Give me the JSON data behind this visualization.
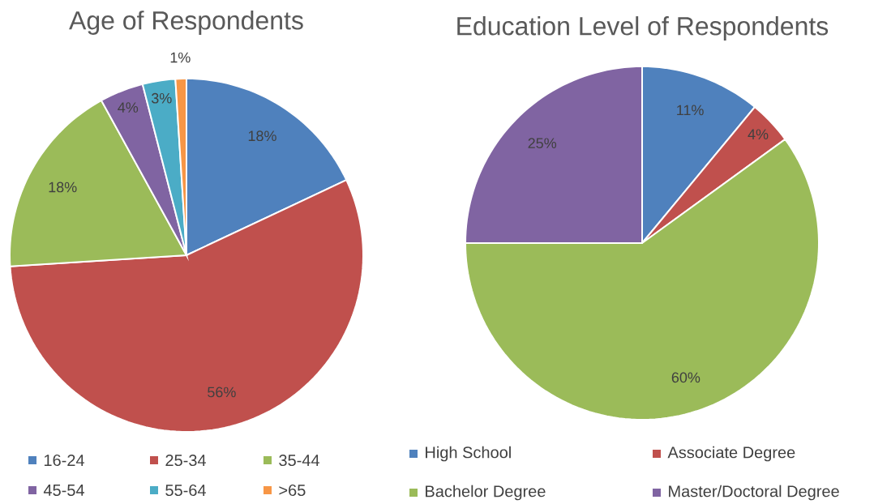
{
  "chart_data": [
    {
      "type": "pie",
      "title": "Age of Respondents",
      "categories": [
        "16-24",
        "25-34",
        "35-44",
        "45-54",
        "55-64",
        ">65"
      ],
      "values": [
        18,
        56,
        18,
        4,
        3,
        1
      ],
      "value_labels": [
        "18%",
        "56%",
        "18%",
        "4%",
        "3%",
        "1%"
      ],
      "colors": [
        "#4f81bd",
        "#c0504d",
        "#9bbb59",
        "#8064a2",
        "#4bacc6",
        "#f79646"
      ],
      "legend": "bottom"
    },
    {
      "type": "pie",
      "title": "Education Level of Respondents",
      "categories": [
        "High School",
        "Associate Degree",
        "Bachelor Degree",
        "Master/Doctoral Degree"
      ],
      "values": [
        11,
        4,
        60,
        25
      ],
      "value_labels": [
        "11%",
        "4%",
        "60%",
        "25%"
      ],
      "colors": [
        "#4f81bd",
        "#c0504d",
        "#9bbb59",
        "#8064a2"
      ],
      "legend": "bottom"
    }
  ]
}
